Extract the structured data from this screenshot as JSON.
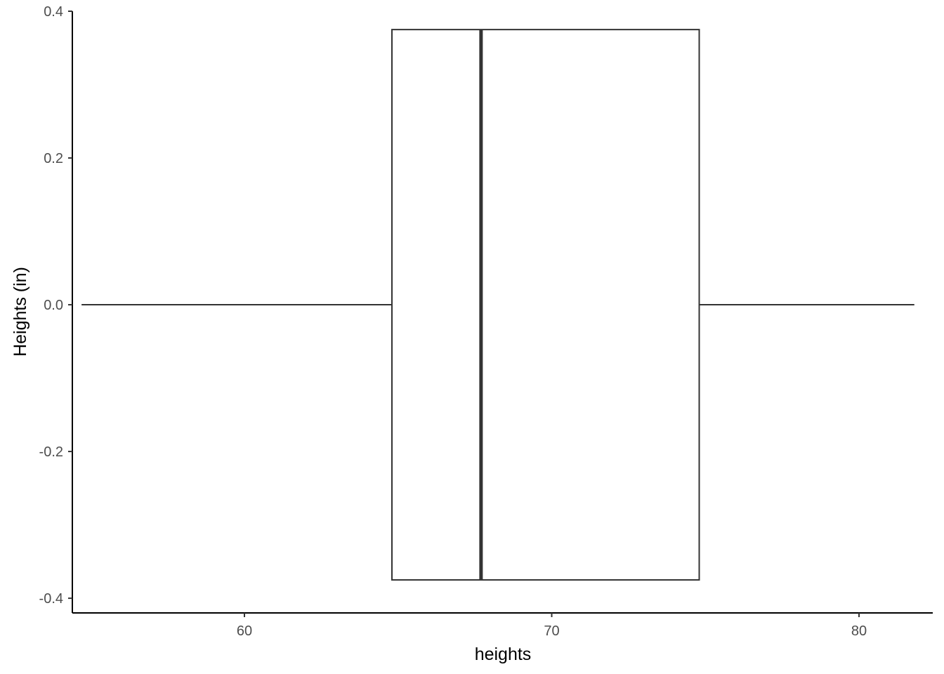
{
  "chart_data": {
    "type": "boxplot",
    "orientation": "horizontal",
    "xlabel": "heights",
    "ylabel": "Heights (in)",
    "xlim": [
      54.4,
      82.4
    ],
    "ylim": [
      -0.42,
      0.4
    ],
    "x_ticks": [
      60,
      70,
      80
    ],
    "x_tick_labels": [
      "60",
      "70",
      "80"
    ],
    "y_ticks": [
      -0.4,
      -0.2,
      0.0,
      0.2,
      0.4
    ],
    "y_tick_labels": [
      "-0.4",
      "-0.2",
      "0.0",
      "0.2",
      "0.4"
    ],
    "grid": false,
    "box": {
      "whisker_low": 54.7,
      "q1": 64.8,
      "median": 67.7,
      "q3": 74.8,
      "whisker_high": 81.8,
      "y_center": 0.0,
      "half_width": 0.375
    },
    "colors": {
      "box_fill": "#ffffff",
      "box_stroke": "#333333",
      "axis": "#000000",
      "tick_label": "#4d4d4d"
    }
  }
}
